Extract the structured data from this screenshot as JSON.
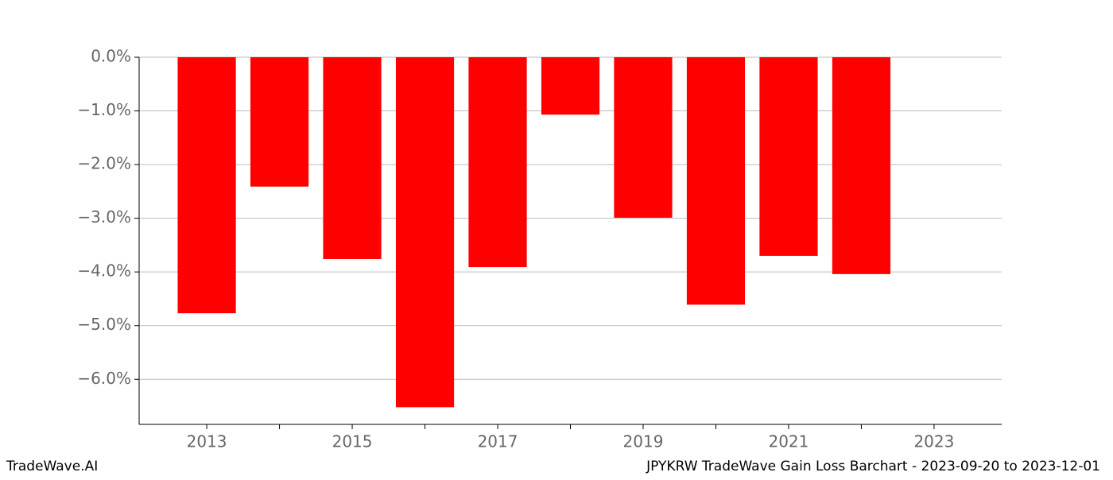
{
  "chart_data": {
    "type": "bar",
    "title": "JPYKRW TradeWave Gain Loss Barchart - 2023-09-20 to 2023-12-01",
    "source": "TradeWave.AI",
    "x": [
      2013,
      2014,
      2015,
      2016,
      2017,
      2018,
      2019,
      2020,
      2021,
      2022
    ],
    "values": [
      -4.77,
      -2.41,
      -3.76,
      -6.52,
      -3.91,
      -1.07,
      -2.99,
      -4.61,
      -3.7,
      -4.04
    ],
    "color": "#ff0000",
    "xlim": [
      2012.07,
      2023.93
    ],
    "xticks": [
      2013,
      2015,
      2017,
      2019,
      2021,
      2023
    ],
    "xminorticks": [
      2014,
      2016,
      2018,
      2020,
      2022
    ],
    "ylim": [
      -6.84,
      0
    ],
    "yticks": [
      {
        "value": 0,
        "label": "0.0%"
      },
      {
        "value": -1,
        "label": "−1.0%"
      },
      {
        "value": -2,
        "label": "−2.0%"
      },
      {
        "value": -3,
        "label": "−3.0%"
      },
      {
        "value": -4,
        "label": "−4.0%"
      },
      {
        "value": -5,
        "label": "−5.0%"
      },
      {
        "value": -6,
        "label": "−6.0%"
      }
    ],
    "grid": true
  }
}
